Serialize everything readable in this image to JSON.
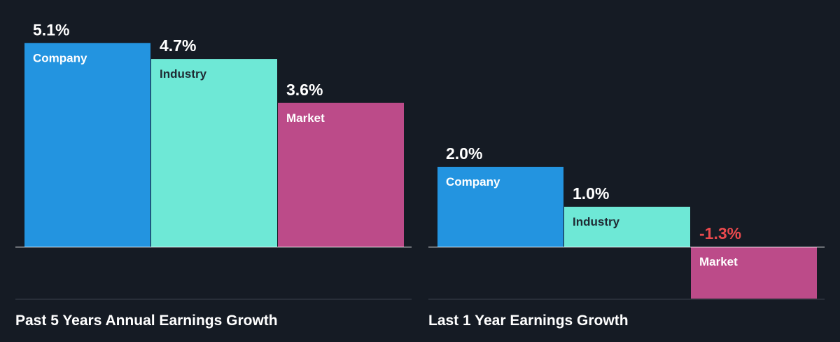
{
  "chart_data": [
    {
      "type": "bar",
      "title": "Past 5 Years Annual Earnings Growth",
      "categories": [
        "Company",
        "Industry",
        "Market"
      ],
      "values": [
        5.1,
        4.7,
        3.6
      ],
      "value_labels": [
        "5.1%",
        "4.7%",
        "3.6%"
      ],
      "unit": "%",
      "colors": [
        "#2394e0",
        "#6ee8d6",
        "#bc4b89"
      ]
    },
    {
      "type": "bar",
      "title": "Last 1 Year Earnings Growth",
      "categories": [
        "Company",
        "Industry",
        "Market"
      ],
      "values": [
        2.0,
        1.0,
        -1.3
      ],
      "value_labels": [
        "2.0%",
        "1.0%",
        "-1.3%"
      ],
      "unit": "%",
      "colors": [
        "#2394e0",
        "#6ee8d6",
        "#bc4b89"
      ]
    }
  ],
  "style": {
    "background": "#151b24",
    "positive_label_color": "#ffffff",
    "negative_label_color": "#e9494d",
    "axis_color": "#ffffff",
    "separator_color": "#3a414c"
  }
}
